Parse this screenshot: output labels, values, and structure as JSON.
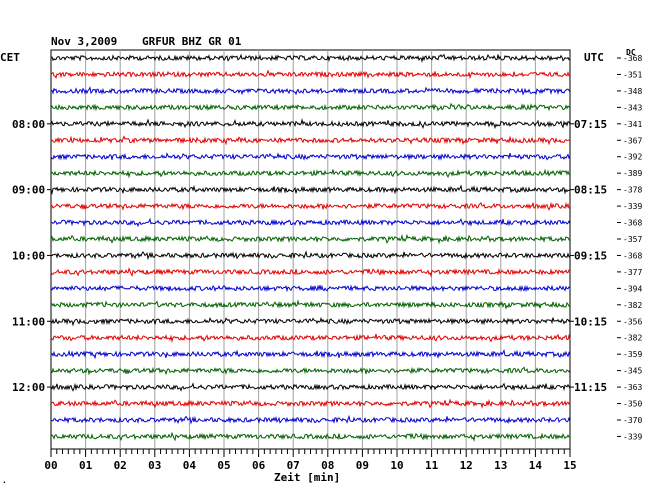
{
  "header": {
    "date": "Nov 3,2009",
    "station": "GRFUR BHZ GR 01"
  },
  "labels": {
    "left_tz": "CET",
    "right_tz": "UTC",
    "dc": "DC",
    "x_axis": "Zeit [min]",
    "corner": "."
  },
  "chart_data": {
    "type": "line",
    "title": "Nov 3,2009   GRFUR BHZ GR 01",
    "xlabel": "Zeit [min]",
    "xlim": [
      0,
      15
    ],
    "x_ticks": [
      "00",
      "01",
      "02",
      "03",
      "04",
      "05",
      "06",
      "07",
      "08",
      "09",
      "10",
      "11",
      "12",
      "13",
      "14",
      "15"
    ],
    "left_hour_labels": [
      {
        "trace": 4,
        "label": "08:00"
      },
      {
        "trace": 8,
        "label": "09:00"
      },
      {
        "trace": 12,
        "label": "10:00"
      },
      {
        "trace": 16,
        "label": "11:00"
      },
      {
        "trace": 20,
        "label": "12:00"
      }
    ],
    "right_hour_labels": [
      {
        "trace": 4,
        "label": "07:15"
      },
      {
        "trace": 8,
        "label": "08:15"
      },
      {
        "trace": 12,
        "label": "09:15"
      },
      {
        "trace": 16,
        "label": "10:15"
      },
      {
        "trace": 20,
        "label": "11:15"
      }
    ],
    "trace_colors": [
      "#000000",
      "#e00000",
      "#0000d0",
      "#006000"
    ],
    "dc_offsets": [
      "-368",
      "-351",
      "-348",
      "-343",
      "-341",
      "-367",
      "-392",
      "-389",
      "-378",
      "-339",
      "-368",
      "-357",
      "-368",
      "-377",
      "-394",
      "-382",
      "-356",
      "-382",
      "-359",
      "-345",
      "-363",
      "-350",
      "-370",
      "-339"
    ]
  }
}
